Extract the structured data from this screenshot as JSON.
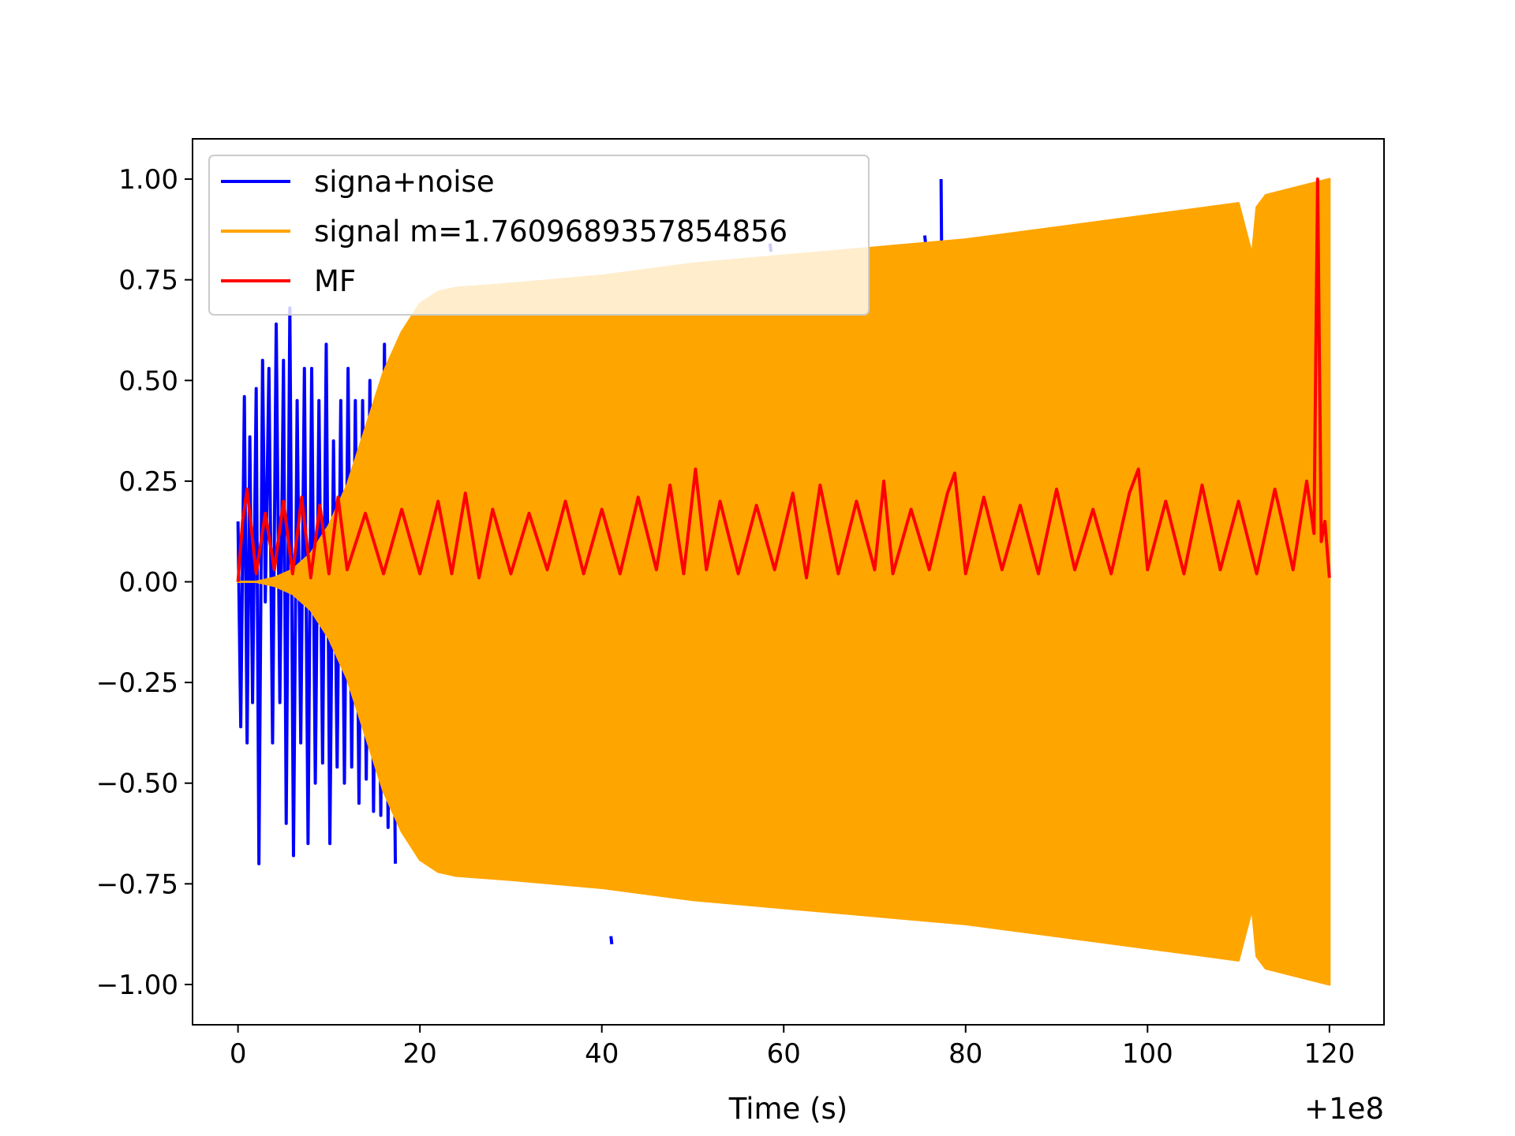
{
  "chart_data": {
    "type": "line",
    "title": "",
    "xlabel": "Time (s)",
    "ylabel": "",
    "x_offset_label": "+1e8",
    "xlim": [
      -5,
      126
    ],
    "ylim": [
      -1.1,
      1.1
    ],
    "x_ticks": [
      0,
      20,
      40,
      60,
      80,
      100,
      120
    ],
    "x_tick_labels": [
      "0",
      "20",
      "40",
      "60",
      "80",
      "100",
      "120"
    ],
    "y_ticks": [
      1.0,
      0.75,
      0.5,
      0.25,
      0.0,
      -0.25,
      -0.5,
      -0.75,
      -1.0
    ],
    "y_tick_labels": [
      "1.00",
      "0.75",
      "0.50",
      "0.25",
      "0.00",
      "−0.25",
      "−0.50",
      "−0.75",
      "−1.00"
    ],
    "grid": false,
    "legend_position": "upper-left",
    "series": [
      {
        "name": "signa+noise",
        "color": "#0000ff",
        "x": [
          0,
          0.3,
          0.7,
          1.0,
          1.3,
          1.6,
          2.0,
          2.3,
          2.7,
          3.0,
          3.4,
          3.8,
          4.2,
          4.6,
          5.0,
          5.3,
          5.7,
          6.1,
          6.5,
          6.9,
          7.3,
          7.7,
          8.1,
          8.5,
          8.9,
          9.3,
          9.7,
          10.1,
          10.5,
          10.9,
          11.3,
          11.7,
          12.1,
          12.5,
          12.9,
          13.3,
          13.7,
          14.1,
          14.5,
          14.9,
          15.3,
          15.7,
          16.1,
          16.5,
          16.9,
          17.3,
          41.0,
          41.1,
          58.5,
          58.6,
          75.5,
          75.6,
          77.3,
          77.4
        ],
        "y": [
          0.15,
          -0.36,
          0.46,
          -0.4,
          0.36,
          -0.3,
          0.48,
          -0.7,
          0.55,
          -0.05,
          0.53,
          -0.4,
          0.64,
          -0.3,
          0.55,
          -0.6,
          0.68,
          -0.68,
          0.45,
          -0.4,
          0.53,
          -0.65,
          0.53,
          -0.5,
          0.45,
          -0.45,
          0.59,
          -0.65,
          0.35,
          -0.46,
          0.45,
          -0.5,
          0.53,
          -0.46,
          0.45,
          -0.55,
          0.45,
          -0.49,
          0.5,
          -0.57,
          0.3,
          -0.58,
          0.59,
          -0.61,
          0.3,
          -0.7,
          -0.88,
          -0.9,
          0.84,
          0.82,
          0.86,
          0.84,
          1.0,
          0.7
        ]
      },
      {
        "name": "signal m=1.7609689357854856",
        "color": "#ffa500",
        "envelope_x": [
          0,
          2,
          4,
          6,
          8,
          10,
          12,
          14,
          16,
          18,
          20,
          22,
          24,
          30,
          40,
          50,
          60,
          70,
          80,
          90,
          100,
          110,
          111.5,
          112,
          113,
          120
        ],
        "envelope_y": [
          0.0,
          0.0,
          0.01,
          0.03,
          0.07,
          0.14,
          0.24,
          0.38,
          0.52,
          0.62,
          0.69,
          0.72,
          0.73,
          0.74,
          0.76,
          0.79,
          0.81,
          0.83,
          0.85,
          0.88,
          0.91,
          0.94,
          0.81,
          0.93,
          0.96,
          1.0
        ]
      },
      {
        "name": "MF",
        "color": "#ff0000",
        "x": [
          0,
          0.5,
          1,
          2,
          3,
          4,
          5,
          6,
          7,
          8,
          9,
          10,
          11,
          12,
          14,
          16,
          18,
          20,
          22,
          23.5,
          25,
          26.5,
          28,
          30,
          32,
          34,
          36,
          38,
          40,
          42,
          44,
          46,
          47.5,
          49,
          50.3,
          51.5,
          53,
          55,
          57,
          59,
          61,
          62.5,
          64,
          66,
          68,
          70,
          71,
          72,
          74,
          76,
          78,
          78.8,
          80,
          82,
          84,
          86,
          88,
          90,
          92,
          94,
          96,
          98,
          99,
          100,
          102,
          104,
          106,
          108,
          110,
          112,
          114,
          116,
          117.5,
          118.3,
          118.7,
          119.1,
          119.5,
          120
        ],
        "y": [
          0.0,
          0.15,
          0.23,
          0.02,
          0.17,
          0.03,
          0.2,
          0.02,
          0.21,
          0.01,
          0.19,
          0.02,
          0.21,
          0.03,
          0.17,
          0.02,
          0.18,
          0.02,
          0.2,
          0.02,
          0.22,
          0.01,
          0.18,
          0.02,
          0.17,
          0.03,
          0.2,
          0.02,
          0.18,
          0.02,
          0.21,
          0.03,
          0.24,
          0.02,
          0.28,
          0.03,
          0.2,
          0.02,
          0.19,
          0.03,
          0.22,
          0.01,
          0.24,
          0.02,
          0.2,
          0.03,
          0.25,
          0.02,
          0.18,
          0.03,
          0.22,
          0.27,
          0.02,
          0.21,
          0.03,
          0.19,
          0.02,
          0.23,
          0.03,
          0.18,
          0.02,
          0.22,
          0.28,
          0.03,
          0.2,
          0.02,
          0.24,
          0.03,
          0.2,
          0.02,
          0.23,
          0.03,
          0.25,
          0.12,
          1.0,
          0.1,
          0.15,
          0.01
        ]
      }
    ]
  }
}
